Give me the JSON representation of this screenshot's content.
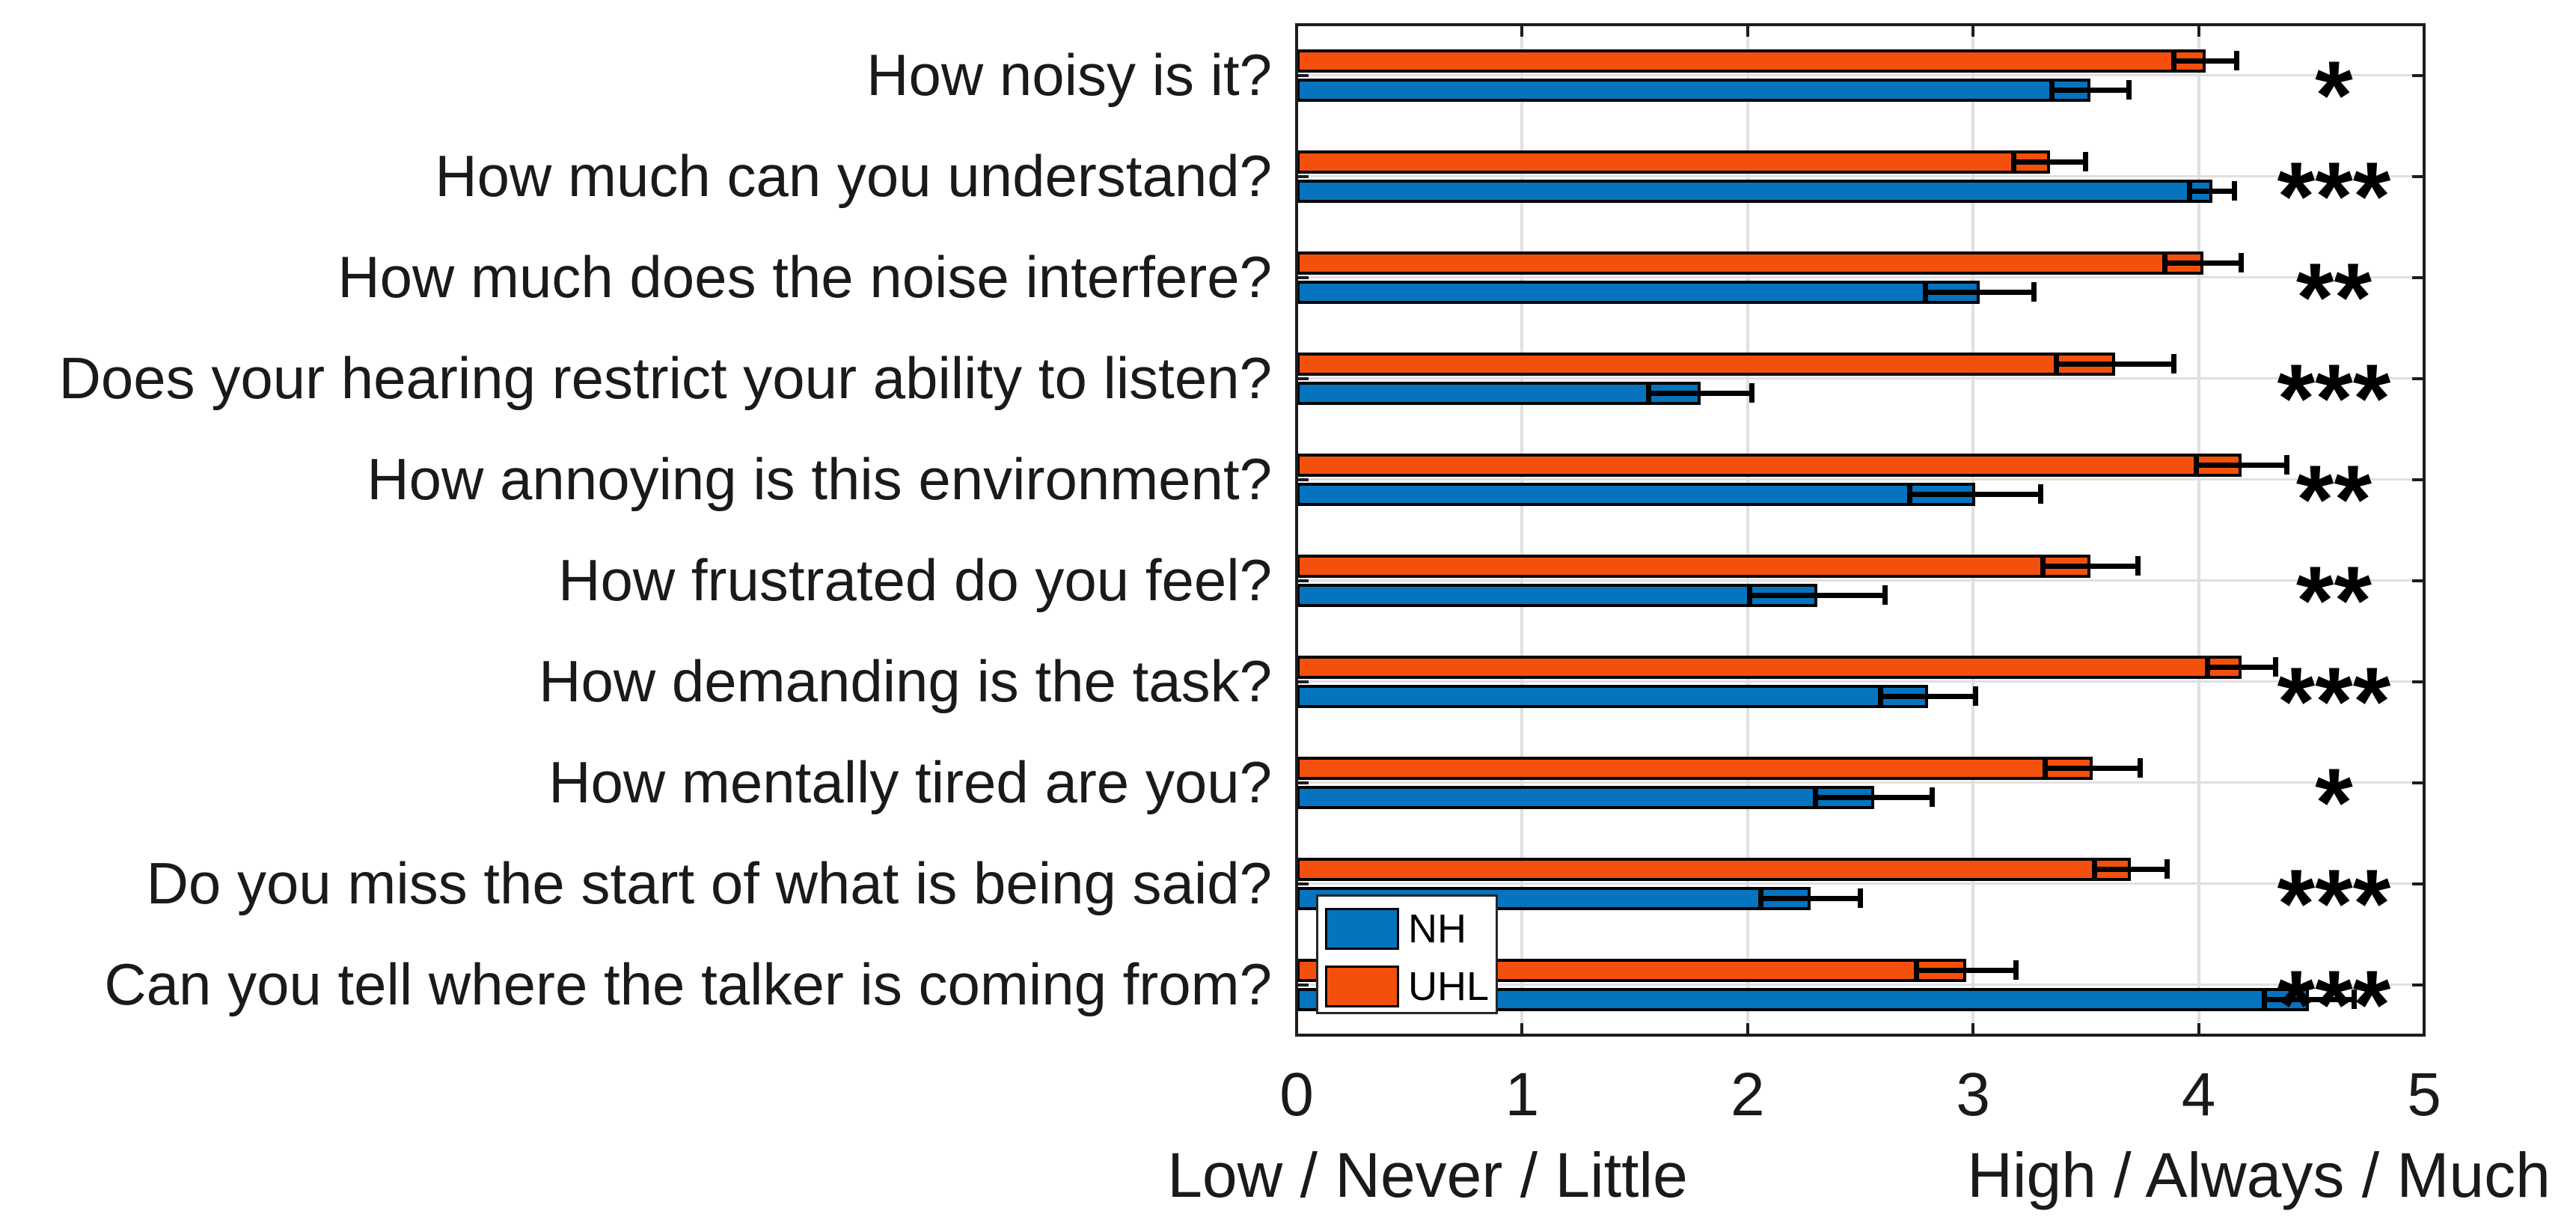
{
  "chart_data": {
    "type": "bar",
    "orientation": "horizontal-grouped",
    "title": "",
    "categories": [
      "How noisy is it?",
      "How much can you understand?",
      "How much does the noise interfere?",
      "Does your hearing restrict your ability to listen?",
      "How annoying is this environment?",
      "How frustrated do you feel?",
      "How demanding is the task?",
      "How mentally tired are you?",
      "Do you miss the start of what is being said?",
      "Can you tell where the talker is coming from?"
    ],
    "series": [
      {
        "name": "NH",
        "color": "#0673BE",
        "values": [
          3.52,
          4.06,
          3.03,
          1.79,
          3.01,
          2.31,
          2.8,
          2.56,
          2.28,
          4.49
        ],
        "errors": [
          0.17,
          0.1,
          0.24,
          0.23,
          0.29,
          0.3,
          0.21,
          0.26,
          0.22,
          0.2
        ]
      },
      {
        "name": "UHL",
        "color": "#F4500D",
        "values": [
          4.03,
          3.34,
          4.02,
          3.63,
          4.19,
          3.52,
          4.19,
          3.53,
          3.7,
          2.97
        ],
        "errors": [
          0.14,
          0.16,
          0.17,
          0.26,
          0.2,
          0.21,
          0.15,
          0.21,
          0.16,
          0.22
        ]
      }
    ],
    "significance": [
      "*",
      "***",
      "**",
      "***",
      "**",
      "**",
      "***",
      "*",
      "***",
      "***"
    ],
    "significance_x": 4.6,
    "xlim": [
      0,
      5
    ],
    "xticks": [
      "0",
      "1",
      "2",
      "3",
      "4",
      "5"
    ],
    "xlabel_left": "Low / Never / Little",
    "xlabel_right": "High / Always / Much",
    "legend_entries": [
      "NH",
      "UHL"
    ],
    "legend_position": "inside-bottom-left",
    "grid": true,
    "bar_edge_color": "#000000",
    "error_bar_color": "#000000",
    "axis_color": "#1c1c1c",
    "grid_color": "#e0e0e0"
  }
}
